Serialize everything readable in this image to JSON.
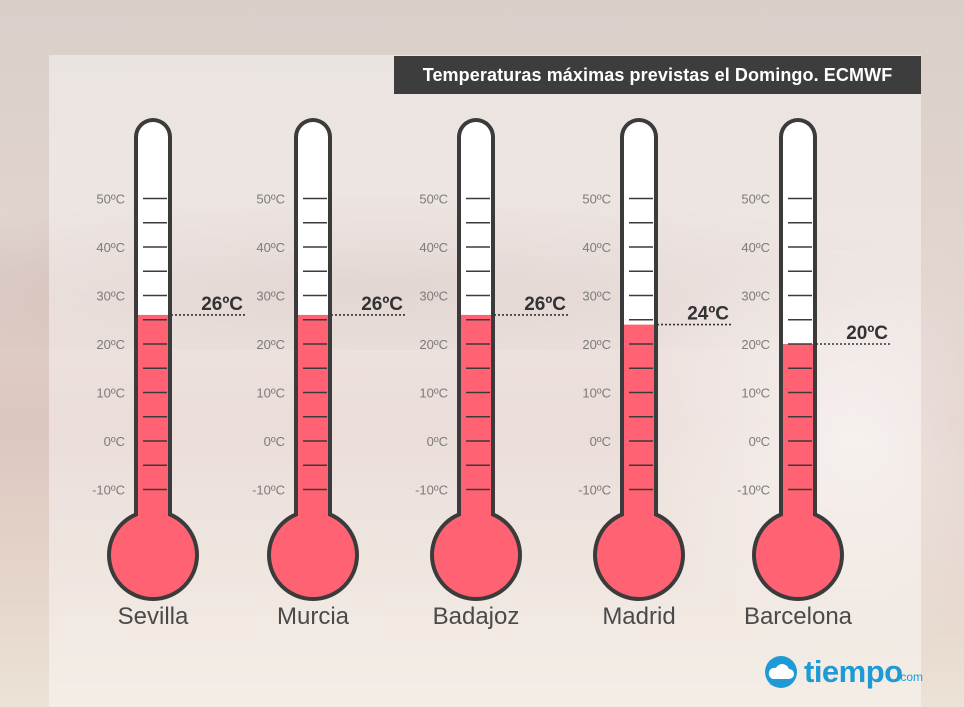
{
  "title": "Temperaturas máximas previstas el Domingo. ECMWF",
  "colors": {
    "fill": "#ff6272",
    "outline": "#3b3b3b",
    "tube": "#ffffff"
  },
  "chart_data": {
    "type": "bar",
    "title": "Temperaturas máximas previstas el Domingo. ECMWF",
    "categories": [
      "Sevilla",
      "Murcia",
      "Badajoz",
      "Madrid",
      "Barcelona"
    ],
    "values": [
      26,
      26,
      26,
      24,
      20
    ],
    "value_labels": [
      "26ºC",
      "26ºC",
      "26ºC",
      "24ºC",
      "20ºC"
    ],
    "ylim": [
      -15,
      55
    ],
    "tick_values": [
      50,
      40,
      30,
      20,
      10,
      0,
      -10
    ],
    "tick_labels": [
      "50ºC",
      "40ºC",
      "30ºC",
      "20ºC",
      "10ºC",
      "0ºC",
      "-10ºC"
    ],
    "unit": "ºC"
  },
  "logo": {
    "brand": "tiempo",
    "tld": ".com",
    "icon": "cloud-icon"
  }
}
